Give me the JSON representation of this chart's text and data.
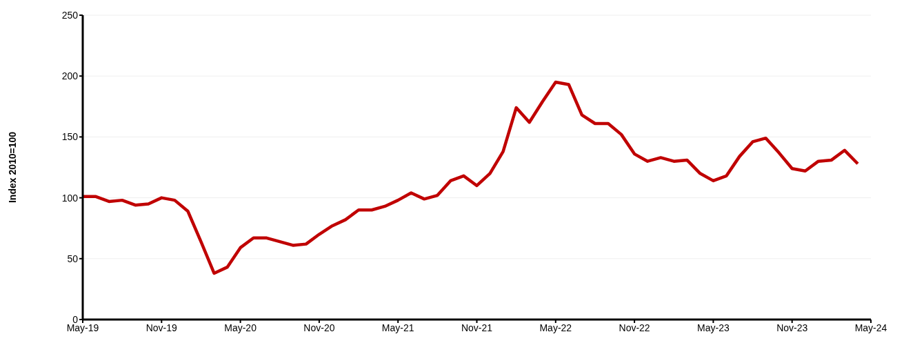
{
  "chart_data": {
    "type": "line",
    "ylabel": "Index 2010=100",
    "x": [
      "2019-05",
      "2019-06",
      "2019-07",
      "2019-08",
      "2019-09",
      "2019-10",
      "2019-11",
      "2019-12",
      "2020-01",
      "2020-02",
      "2020-03",
      "2020-04",
      "2020-05",
      "2020-06",
      "2020-07",
      "2020-08",
      "2020-09",
      "2020-10",
      "2020-11",
      "2020-12",
      "2021-01",
      "2021-02",
      "2021-03",
      "2021-04",
      "2021-05",
      "2021-06",
      "2021-07",
      "2021-08",
      "2021-09",
      "2021-10",
      "2021-11",
      "2021-12",
      "2022-01",
      "2022-02",
      "2022-03",
      "2022-04",
      "2022-05",
      "2022-06",
      "2022-07",
      "2022-08",
      "2022-09",
      "2022-10",
      "2022-11",
      "2022-12",
      "2023-01",
      "2023-02",
      "2023-03",
      "2023-04",
      "2023-05",
      "2023-06",
      "2023-07",
      "2023-08",
      "2023-09",
      "2023-10",
      "2023-11",
      "2023-12",
      "2024-01",
      "2024-02",
      "2024-03",
      "2024-04"
    ],
    "series": [
      {
        "color": "#c00000",
        "values": [
          101,
          101,
          97,
          98,
          94,
          95,
          100,
          98,
          89,
          64,
          38,
          43,
          59,
          67,
          67,
          64,
          61,
          62,
          70,
          77,
          82,
          90,
          90,
          93,
          98,
          104,
          99,
          102,
          114,
          118,
          110,
          120,
          138,
          174,
          162,
          179,
          195,
          193,
          168,
          161,
          161,
          152,
          136,
          130,
          133,
          130,
          131,
          120,
          114,
          118,
          134,
          146,
          149,
          137,
          124,
          122,
          130,
          131,
          139,
          128
        ]
      }
    ],
    "xlim": [
      "2019-05",
      "2024-05"
    ],
    "xticks": [
      {
        "value": "2019-05",
        "label": "May-19"
      },
      {
        "value": "2019-11",
        "label": "Nov-19"
      },
      {
        "value": "2020-05",
        "label": "May-20"
      },
      {
        "value": "2020-11",
        "label": "Nov-20"
      },
      {
        "value": "2021-05",
        "label": "May-21"
      },
      {
        "value": "2021-11",
        "label": "Nov-21"
      },
      {
        "value": "2022-05",
        "label": "May-22"
      },
      {
        "value": "2022-11",
        "label": "Nov-22"
      },
      {
        "value": "2023-05",
        "label": "May-23"
      },
      {
        "value": "2023-11",
        "label": "Nov-23"
      },
      {
        "value": "2024-05",
        "label": "May-24"
      }
    ],
    "ylim": [
      0,
      250
    ],
    "yticks": [
      0,
      50,
      100,
      150,
      200,
      250
    ],
    "grid": "y",
    "legend": false,
    "marker": "none",
    "line_style": "solid"
  }
}
